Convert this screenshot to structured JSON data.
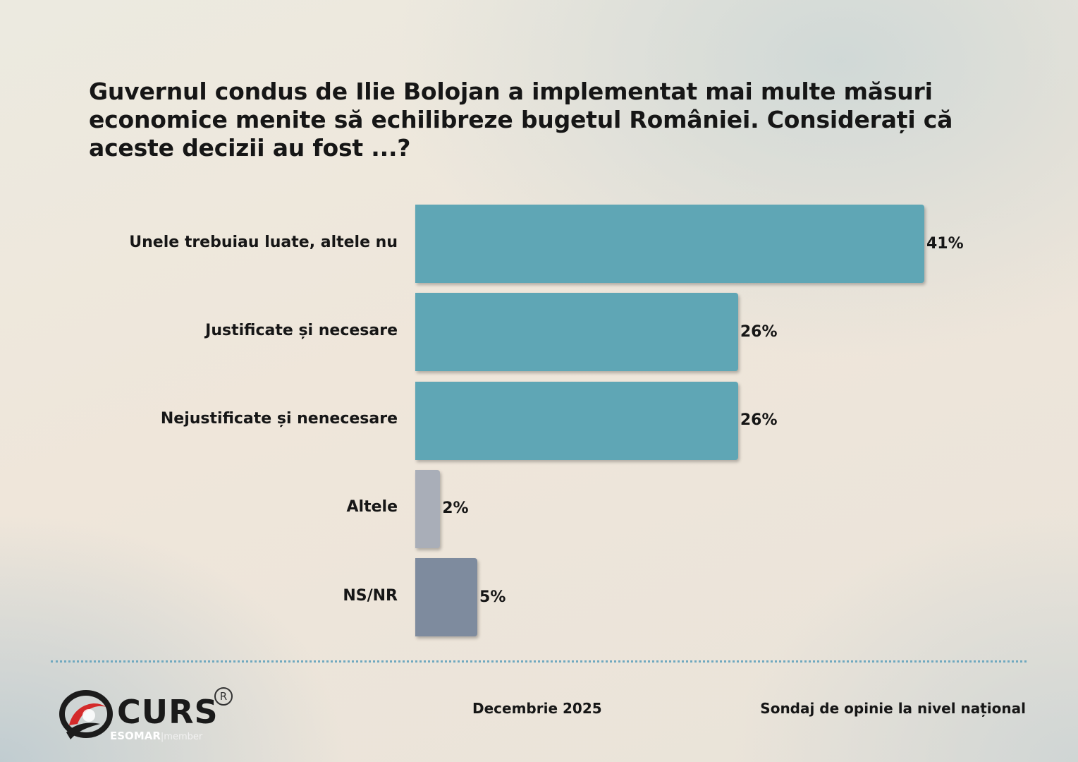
{
  "title": "Guvernul condus de Ilie Bolojan a implementat mai multe măsuri economice menite să echilibreze bugetul României. Considerați că aceste decizii au fost ...?",
  "chart_data": {
    "type": "bar",
    "orientation": "horizontal",
    "title": "Guvernul condus de Ilie Bolojan a implementat mai multe măsuri economice menite să echilibreze bugetul României. Considerați că aceste decizii au fost ...?",
    "categories": [
      "Unele trebuiau luate, altele nu",
      "Justificate și necesare",
      "Nejustificate și nenecesare",
      "Altele",
      "NS/NR"
    ],
    "values": [
      41,
      26,
      26,
      2,
      5
    ],
    "value_labels": [
      "41%",
      "26%",
      "26%",
      "2%",
      "5%"
    ],
    "colors": [
      "#5fa6b5",
      "#5fa6b5",
      "#5fa6b5",
      "#a9aeb8",
      "#7e8b9e"
    ],
    "xlim": [
      0,
      41
    ],
    "grid": false,
    "legend": "none"
  },
  "footer": {
    "date": "Decembrie 2025",
    "note": "Sondaj de opinie la nivel național"
  },
  "logo": {
    "brand": "CURS",
    "registered": "R",
    "member_org": "ESOMAR",
    "member_label": "member",
    "icon": "curs-swirl-logo-icon"
  }
}
